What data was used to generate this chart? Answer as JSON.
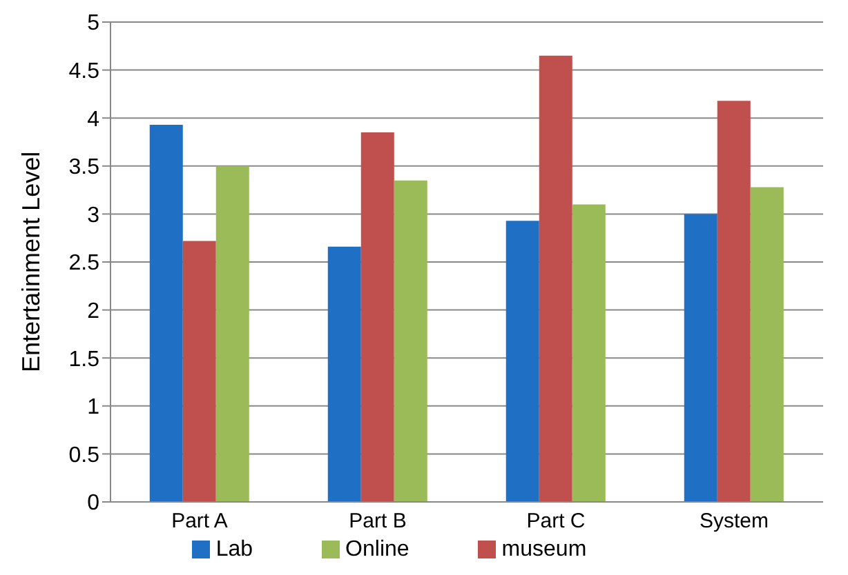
{
  "chart_data": {
    "type": "bar",
    "ylabel": "Entertainment Level",
    "categories": [
      "Part A",
      "Part B",
      "Part C",
      "System"
    ],
    "series": [
      {
        "name": "Lab",
        "color": "#1f6fc5",
        "values": [
          3.93,
          2.66,
          2.93,
          3.0
        ]
      },
      {
        "name": "museum",
        "color": "#c0504d",
        "values": [
          2.72,
          3.85,
          4.65,
          4.18
        ]
      },
      {
        "name": "Online",
        "color": "#9bbb59",
        "values": [
          3.5,
          3.35,
          3.1,
          3.28
        ]
      }
    ],
    "ylim": [
      0,
      5
    ],
    "yticks": [
      0,
      0.5,
      1,
      1.5,
      2,
      2.5,
      3,
      3.5,
      4,
      4.5,
      5
    ],
    "grid": "y",
    "legend": "bottom"
  }
}
